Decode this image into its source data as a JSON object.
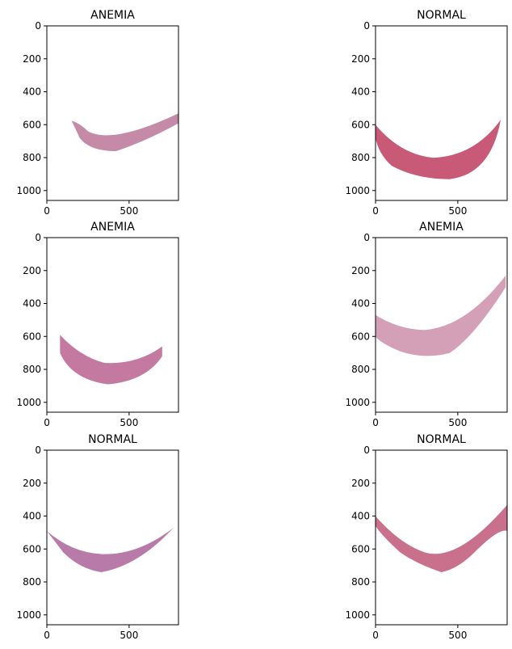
{
  "panels": [
    {
      "title": "ANEMIA",
      "xlim": [
        0,
        800
      ],
      "ylim": [
        1060,
        0
      ],
      "xticks": [
        0,
        500
      ],
      "yticks": [
        0,
        200,
        400,
        600,
        800,
        1000
      ]
    },
    {
      "title": "NORMAL",
      "xlim": [
        0,
        800
      ],
      "ylim": [
        1060,
        0
      ],
      "xticks": [
        0,
        500
      ],
      "yticks": [
        0,
        200,
        400,
        600,
        800,
        1000
      ]
    },
    {
      "title": "ANEMIA",
      "xlim": [
        0,
        800
      ],
      "ylim": [
        1060,
        0
      ],
      "xticks": [
        0,
        500
      ],
      "yticks": [
        0,
        200,
        400,
        600,
        800,
        1000
      ]
    },
    {
      "title": "ANEMIA",
      "xlim": [
        0,
        800
      ],
      "ylim": [
        1060,
        0
      ],
      "xticks": [
        0,
        500
      ],
      "yticks": [
        0,
        200,
        400,
        600,
        800,
        1000
      ]
    },
    {
      "title": "NORMAL",
      "xlim": [
        0,
        800
      ],
      "ylim": [
        1060,
        0
      ],
      "xticks": [
        0,
        500
      ],
      "yticks": [
        0,
        200,
        400,
        600,
        800,
        1000
      ]
    },
    {
      "title": "NORMAL",
      "xlim": [
        0,
        800
      ],
      "ylim": [
        1060,
        0
      ],
      "xticks": [
        0,
        500
      ],
      "yticks": [
        0,
        200,
        400,
        600,
        800,
        1000
      ]
    }
  ]
}
